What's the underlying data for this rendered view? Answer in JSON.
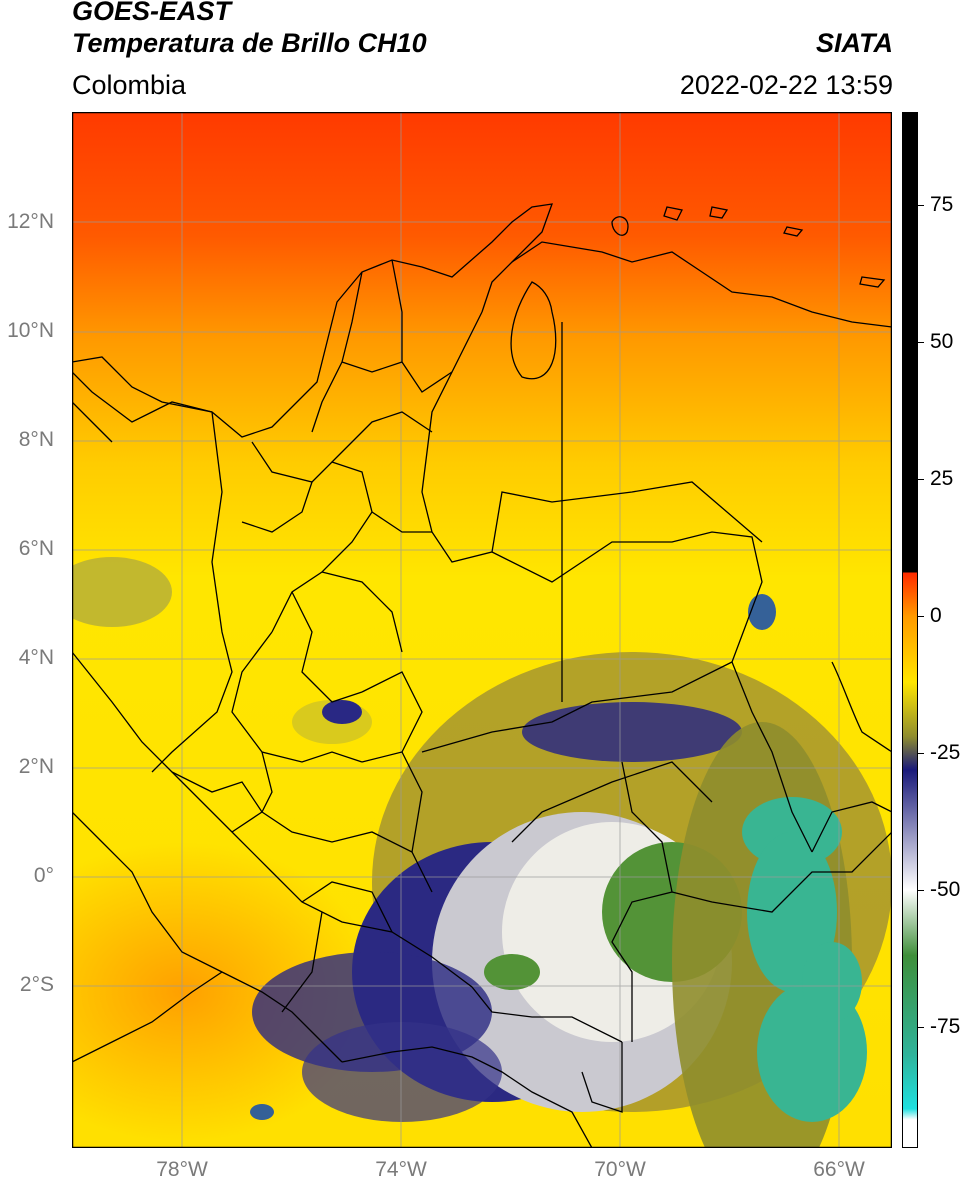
{
  "header": {
    "title_line1": "GOES-EAST",
    "title_line2": "Temperatura de Brillo CH10",
    "brand": "SIATA",
    "region": "Colombia",
    "timestamp": "2022-02-22 13:59"
  },
  "map": {
    "lat_labels": [
      "12°N",
      "10°N",
      "8°N",
      "6°N",
      "4°N",
      "2°N",
      "0°",
      "2°S"
    ],
    "lon_labels": [
      "78°W",
      "74°W",
      "70°W",
      "66°W"
    ],
    "gridline_color": "#9a9a9a",
    "border_color": "#000000"
  },
  "colorbar": {
    "tick_labels": [
      "75",
      "50",
      "25",
      "0",
      "-25",
      "-50",
      "-75"
    ],
    "ticks": [
      75,
      50,
      25,
      0,
      -25,
      -50,
      -75
    ],
    "range": [
      -97,
      92
    ],
    "colors": {
      "black": "#000000",
      "red": "#ff2a00",
      "orange": "#ff9a00",
      "yellow": "#ffe600",
      "olive": "#8f8d2e",
      "navy": "#1a1a7a",
      "white": "#ffffff",
      "green": "#3f8f3a",
      "teal": "#2fb39a",
      "cyan": "#1fe0e0"
    }
  }
}
